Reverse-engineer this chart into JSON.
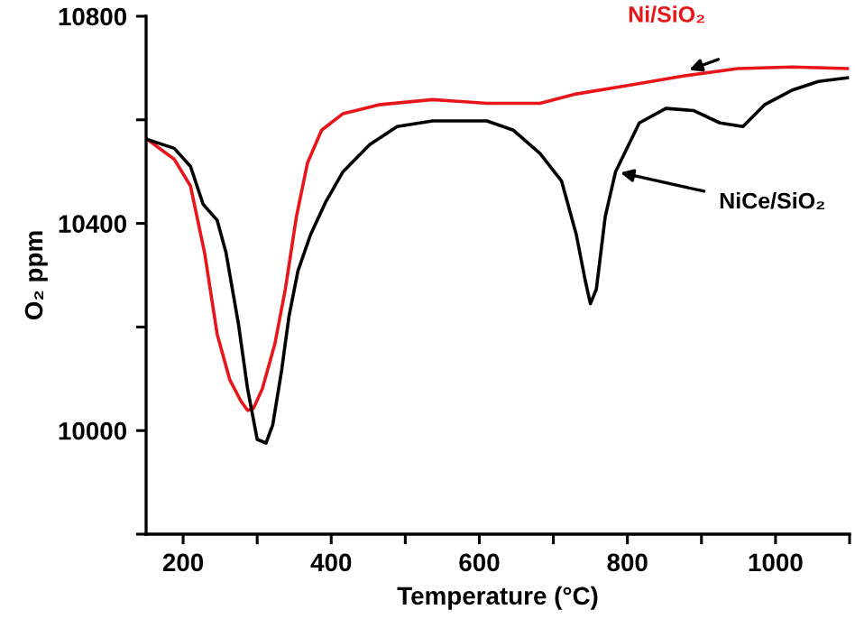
{
  "chart_data": {
    "type": "line",
    "xlabel": "Temperature (°C)",
    "ylabel": "O₂ ppm",
    "xlim": [
      150,
      1100
    ],
    "ylim": [
      9800,
      10800
    ],
    "xticks": [
      200,
      {
        "value": 300,
        "label": null
      },
      400,
      {
        "value": 500,
        "label": null
      },
      600,
      {
        "value": 700,
        "label": null
      },
      800,
      {
        "value": 900,
        "label": null
      },
      1000,
      {
        "value": 1100,
        "label": null
      }
    ],
    "yticks": [
      {
        "value": 9800,
        "label": null
      },
      10000,
      {
        "value": 10200,
        "label": null
      },
      10400,
      {
        "value": 10600,
        "label": null
      },
      10800
    ],
    "grid": false,
    "legend": false,
    "marker": "none",
    "line_style": "solid",
    "series": [
      {
        "name": "Ni/SiO₂",
        "color": "#e8161b",
        "x": [
          152,
          188,
          210,
          229,
          246,
          263,
          278,
          287,
          295,
          307,
          324,
          338,
          353,
          368,
          387,
          416,
          464,
          537,
          610,
          682,
          731,
          804,
          877,
          949,
          1022,
          1097
        ],
        "values": [
          10562,
          10524,
          10472,
          10343,
          10186,
          10098,
          10057,
          10039,
          10043,
          10081,
          10168,
          10273,
          10413,
          10517,
          10580,
          10612,
          10629,
          10639,
          10632,
          10632,
          10650,
          10667,
          10685,
          10699,
          10702,
          10699
        ]
      },
      {
        "name": "NiCe/SiO₂",
        "color": "#000000",
        "x": [
          152,
          188,
          210,
          227,
          246,
          258,
          275,
          287,
          300,
          312,
          321,
          333,
          343,
          355,
          372,
          392,
          416,
          452,
          489,
          537,
          610,
          646,
          682,
          711,
          731,
          743,
          750,
          758,
          770,
          784,
          816,
          852,
          889,
          925,
          956,
          985,
          1022,
          1058,
          1097
        ],
        "values": [
          10562,
          10545,
          10510,
          10437,
          10406,
          10343,
          10203,
          10081,
          9983,
          9976,
          10011,
          10116,
          10221,
          10308,
          10378,
          10440,
          10500,
          10552,
          10587,
          10598,
          10598,
          10580,
          10535,
          10482,
          10378,
          10290,
          10245,
          10273,
          10413,
          10500,
          10594,
          10622,
          10618,
          10594,
          10587,
          10629,
          10657,
          10674,
          10681
        ]
      }
    ]
  }
}
